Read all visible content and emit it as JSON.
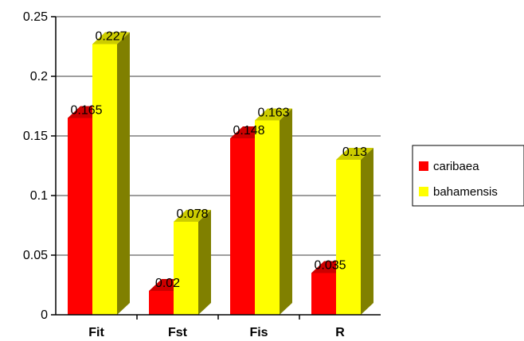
{
  "chart_data": {
    "type": "bar",
    "categories": [
      "Fit",
      "Fst",
      "Fis",
      "R"
    ],
    "series": [
      {
        "name": "caribaea",
        "values": [
          0.165,
          0.02,
          0.148,
          0.035
        ],
        "labels": [
          "0.165",
          "0.02",
          "0.148",
          "0.035"
        ],
        "color": "#ff0000",
        "side_color": "#990000",
        "top_color": "#cc0000"
      },
      {
        "name": "bahamensis",
        "values": [
          0.227,
          0.078,
          0.163,
          0.13
        ],
        "labels": [
          "0.227",
          "0.078",
          "0.163",
          "0.13"
        ],
        "color": "#ffff00",
        "side_color": "#808000",
        "top_color": "#cccc00"
      }
    ],
    "ylim": [
      0,
      0.25
    ],
    "yticks": [
      "0",
      "0.05",
      "0.1",
      "0.15",
      "0.2",
      "0.25"
    ],
    "grid": true,
    "legend": "right",
    "title": "",
    "xlabel": "",
    "ylabel": ""
  }
}
